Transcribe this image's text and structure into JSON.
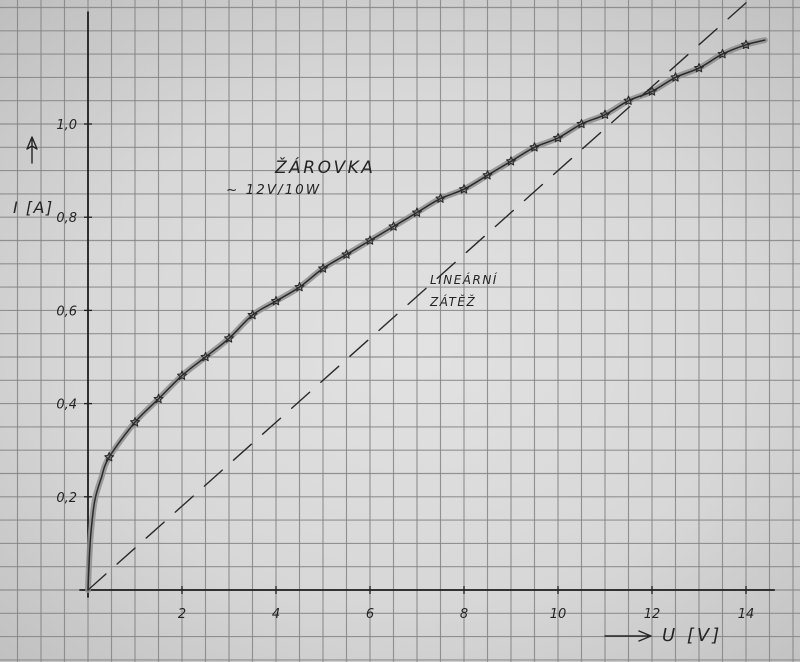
{
  "chart_data": {
    "type": "line",
    "xlabel": "U [V]",
    "ylabel": "I [A]",
    "xlim": [
      0,
      14.6
    ],
    "ylim": [
      0,
      1.24
    ],
    "grid": true,
    "x_ticks": [
      {
        "value": 2,
        "label": "2"
      },
      {
        "value": 4,
        "label": "4"
      },
      {
        "value": 6,
        "label": "6"
      },
      {
        "value": 8,
        "label": "8"
      },
      {
        "value": 10,
        "label": "10"
      },
      {
        "value": 12,
        "label": "12"
      },
      {
        "value": 14,
        "label": "14"
      }
    ],
    "y_ticks": [
      {
        "value": 0.2,
        "label": "0,2"
      },
      {
        "value": 0.4,
        "label": "0,4"
      },
      {
        "value": 0.6,
        "label": "0,6"
      },
      {
        "value": 0.8,
        "label": "0,8"
      },
      {
        "value": 1.0,
        "label": "1,0"
      }
    ],
    "series": [
      {
        "label_lines": [
          "ŽÁROVKA",
          "~ 12V/10W"
        ],
        "dashed": false,
        "markers": true,
        "color": "#2a2a2a",
        "x": [
          0,
          0.02,
          0.06,
          0.14,
          0.28,
          0.45,
          1.0,
          1.5,
          2.0,
          2.5,
          3.0,
          3.5,
          4.0,
          4.5,
          5.0,
          5.5,
          6.0,
          6.5,
          7.0,
          7.5,
          8.0,
          8.5,
          9.0,
          9.5,
          10.0,
          10.5,
          11.0,
          11.5,
          12.0,
          12.5,
          13.0,
          13.5,
          14.0,
          14.4
        ],
        "y": [
          0,
          0.05,
          0.12,
          0.19,
          0.24,
          0.285,
          0.36,
          0.41,
          0.46,
          0.5,
          0.54,
          0.59,
          0.62,
          0.65,
          0.69,
          0.72,
          0.75,
          0.78,
          0.81,
          0.84,
          0.86,
          0.89,
          0.92,
          0.95,
          0.97,
          1.0,
          1.02,
          1.05,
          1.07,
          1.1,
          1.12,
          1.15,
          1.17,
          1.18
        ],
        "marked": [
          false,
          false,
          false,
          false,
          false,
          true,
          true,
          true,
          true,
          true,
          true,
          true,
          true,
          true,
          true,
          true,
          true,
          true,
          true,
          true,
          true,
          true,
          true,
          true,
          true,
          true,
          true,
          true,
          true,
          true,
          true,
          true,
          true,
          false
        ]
      },
      {
        "label_lines": [
          "LINEÁRNÍ",
          "ZÁTĚŽ"
        ],
        "dashed": true,
        "markers": false,
        "color": "#2a2a2a",
        "x": [
          0,
          14
        ],
        "y": [
          0,
          1.26
        ]
      }
    ]
  }
}
